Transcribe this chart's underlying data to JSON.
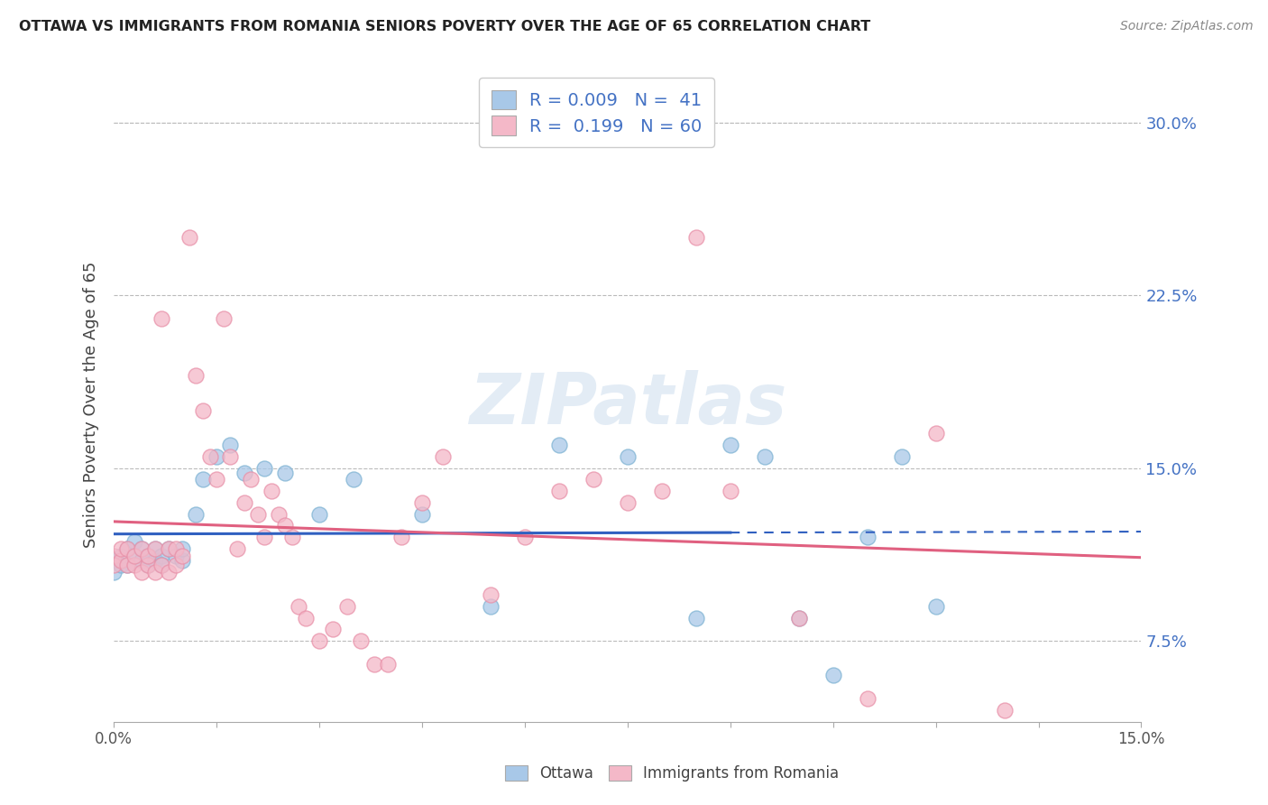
{
  "title": "OTTAWA VS IMMIGRANTS FROM ROMANIA SENIORS POVERTY OVER THE AGE OF 65 CORRELATION CHART",
  "source": "Source: ZipAtlas.com",
  "ylabel": "Seniors Poverty Over the Age of 65",
  "xlim": [
    0.0,
    0.15
  ],
  "ylim": [
    0.04,
    0.315
  ],
  "xtick_positions": [
    0.0,
    0.015,
    0.03,
    0.045,
    0.06,
    0.075,
    0.09,
    0.105,
    0.12,
    0.135,
    0.15
  ],
  "xtick_labels_show": {
    "0.0": "0.0%",
    "0.15": "15.0%"
  },
  "yticks": [
    0.075,
    0.15,
    0.225,
    0.3
  ],
  "ytick_labels": [
    "7.5%",
    "15.0%",
    "22.5%",
    "30.0%"
  ],
  "ottawa_color": "#a8c8e8",
  "ottawa_edge_color": "#7fb3d3",
  "romania_color": "#f4b8c8",
  "romania_edge_color": "#e890a8",
  "ottawa_line_color": "#3060c0",
  "romania_line_color": "#e06080",
  "ottawa_R": "0.009",
  "ottawa_N": "41",
  "romania_R": "0.199",
  "romania_N": "60",
  "legend_R_color": "#4472C4",
  "watermark": "ZIPatlas",
  "ottawa_x": [
    0.0,
    0.0,
    0.001,
    0.001,
    0.002,
    0.002,
    0.003,
    0.003,
    0.004,
    0.004,
    0.005,
    0.005,
    0.006,
    0.006,
    0.007,
    0.007,
    0.008,
    0.009,
    0.01,
    0.01,
    0.012,
    0.013,
    0.015,
    0.017,
    0.019,
    0.022,
    0.025,
    0.03,
    0.035,
    0.045,
    0.055,
    0.065,
    0.075,
    0.085,
    0.09,
    0.095,
    0.1,
    0.105,
    0.11,
    0.115,
    0.12
  ],
  "ottawa_y": [
    0.11,
    0.105,
    0.112,
    0.108,
    0.115,
    0.108,
    0.112,
    0.118,
    0.11,
    0.115,
    0.108,
    0.112,
    0.11,
    0.115,
    0.112,
    0.108,
    0.115,
    0.112,
    0.11,
    0.115,
    0.13,
    0.145,
    0.155,
    0.16,
    0.148,
    0.15,
    0.148,
    0.13,
    0.145,
    0.13,
    0.09,
    0.16,
    0.155,
    0.085,
    0.16,
    0.155,
    0.085,
    0.06,
    0.12,
    0.155,
    0.09
  ],
  "romania_x": [
    0.0,
    0.0,
    0.001,
    0.001,
    0.002,
    0.002,
    0.003,
    0.003,
    0.004,
    0.004,
    0.005,
    0.005,
    0.006,
    0.006,
    0.007,
    0.007,
    0.008,
    0.008,
    0.009,
    0.009,
    0.01,
    0.011,
    0.012,
    0.013,
    0.014,
    0.015,
    0.016,
    0.017,
    0.018,
    0.019,
    0.02,
    0.021,
    0.022,
    0.023,
    0.024,
    0.025,
    0.026,
    0.027,
    0.028,
    0.03,
    0.032,
    0.034,
    0.036,
    0.038,
    0.04,
    0.042,
    0.045,
    0.048,
    0.055,
    0.06,
    0.065,
    0.07,
    0.075,
    0.08,
    0.085,
    0.09,
    0.1,
    0.11,
    0.12,
    0.13
  ],
  "romania_y": [
    0.112,
    0.108,
    0.11,
    0.115,
    0.108,
    0.115,
    0.108,
    0.112,
    0.105,
    0.115,
    0.108,
    0.112,
    0.105,
    0.115,
    0.108,
    0.215,
    0.105,
    0.115,
    0.108,
    0.115,
    0.112,
    0.25,
    0.19,
    0.175,
    0.155,
    0.145,
    0.215,
    0.155,
    0.115,
    0.135,
    0.145,
    0.13,
    0.12,
    0.14,
    0.13,
    0.125,
    0.12,
    0.09,
    0.085,
    0.075,
    0.08,
    0.09,
    0.075,
    0.065,
    0.065,
    0.12,
    0.135,
    0.155,
    0.095,
    0.12,
    0.14,
    0.145,
    0.135,
    0.14,
    0.25,
    0.14,
    0.085,
    0.05,
    0.165,
    0.045
  ]
}
